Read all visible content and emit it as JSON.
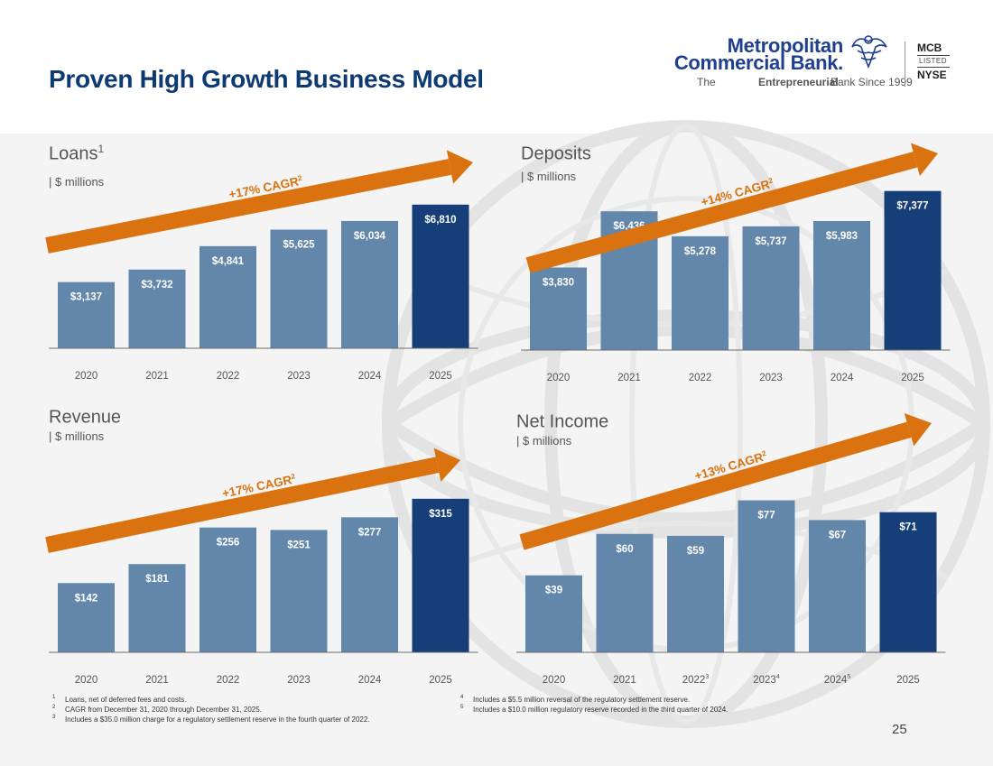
{
  "title": "Proven High Growth Business Model",
  "logo": {
    "name_line1": "Metropolitan",
    "name_line2": "Commercial Bank.",
    "tagline_prefix": "The ",
    "tagline_bold": "Entrepreneurial",
    "tagline_suffix": " Bank Since 1999",
    "ticker": "MCB",
    "listed": "LISTED",
    "exchange": "NYSE"
  },
  "colors": {
    "bar": "#6287ab",
    "bar_highlight": "#163e79",
    "arrow": "#d9720f",
    "axis": "#6b6b6b",
    "title": "#0e3a73"
  },
  "chart_data": [
    {
      "type": "bar",
      "title": "Loans",
      "title_sup": "1",
      "unit": "| $ millions",
      "categories": [
        "2020",
        "2021",
        "2022",
        "2023",
        "2024",
        "2025"
      ],
      "category_sups": [
        "",
        "",
        "",
        "",
        "",
        ""
      ],
      "values": [
        3137,
        3732,
        4841,
        5625,
        6034,
        6810
      ],
      "labels": [
        "$3,137",
        "$3,732",
        "$4,841",
        "$5,625",
        "$6,034",
        "$6,810"
      ],
      "highlight_index": 5,
      "annotation": "+17% CAGR",
      "annotation_sup": "2",
      "ylim": [
        0,
        7400
      ]
    },
    {
      "type": "bar",
      "title": "Deposits",
      "title_sup": "",
      "unit": "| $ millions",
      "categories": [
        "2020",
        "2021",
        "2022",
        "2023",
        "2024",
        "2025"
      ],
      "category_sups": [
        "",
        "",
        "",
        "",
        "",
        ""
      ],
      "values": [
        3830,
        6436,
        5278,
        5737,
        5983,
        7377
      ],
      "labels": [
        "$3,830",
        "$6,436",
        "$5,278",
        "$5,737",
        "$5,983",
        "$7,377"
      ],
      "highlight_index": 5,
      "annotation": "+14% CAGR",
      "annotation_sup": "2",
      "ylim": [
        0,
        7950
      ]
    },
    {
      "type": "bar",
      "title": "Revenue",
      "title_sup": "",
      "unit": "| $ millions",
      "categories": [
        "2020",
        "2021",
        "2022",
        "2023",
        "2024",
        "2025"
      ],
      "category_sups": [
        "",
        "",
        "",
        "",
        "",
        ""
      ],
      "values": [
        142,
        181,
        256,
        251,
        277,
        315
      ],
      "labels": [
        "$142",
        "$181",
        "$256",
        "$251",
        "$277",
        "$315"
      ],
      "highlight_index": 5,
      "annotation": "+17% CAGR",
      "annotation_sup": "2",
      "ylim": [
        0,
        335
      ]
    },
    {
      "type": "bar",
      "title": "Net Income",
      "title_sup": "",
      "unit": "| $ millions",
      "categories": [
        "2020",
        "2021",
        "2022",
        "2023",
        "2024",
        "2025"
      ],
      "category_sups": [
        "",
        "",
        "3",
        "4",
        "5",
        ""
      ],
      "values": [
        39,
        60,
        59,
        77,
        67,
        71
      ],
      "labels": [
        "$39",
        "$60",
        "$59",
        "$77",
        "$67",
        "$71"
      ],
      "highlight_index": 5,
      "annotation": "+13% CAGR",
      "annotation_sup": "2",
      "ylim": [
        0,
        80
      ]
    }
  ],
  "footnotes_left": [
    {
      "num": "1",
      "text": "Loans, net of deferred fees and costs."
    },
    {
      "num": "2",
      "text": "CAGR from December 31, 2020 through December 31, 2025."
    },
    {
      "num": "3",
      "text": "Includes a $35.0 million charge for a regulatory settlement reserve in the fourth quarter of 2022."
    }
  ],
  "footnotes_right": [
    {
      "num": "4",
      "text": "Includes a $5.5 million reversal of the regulatory settlement reserve."
    },
    {
      "num": "5",
      "text": "Includes a $10.0 million regulatory reserve recorded in the third quarter of 2024."
    }
  ],
  "page_number": "25"
}
